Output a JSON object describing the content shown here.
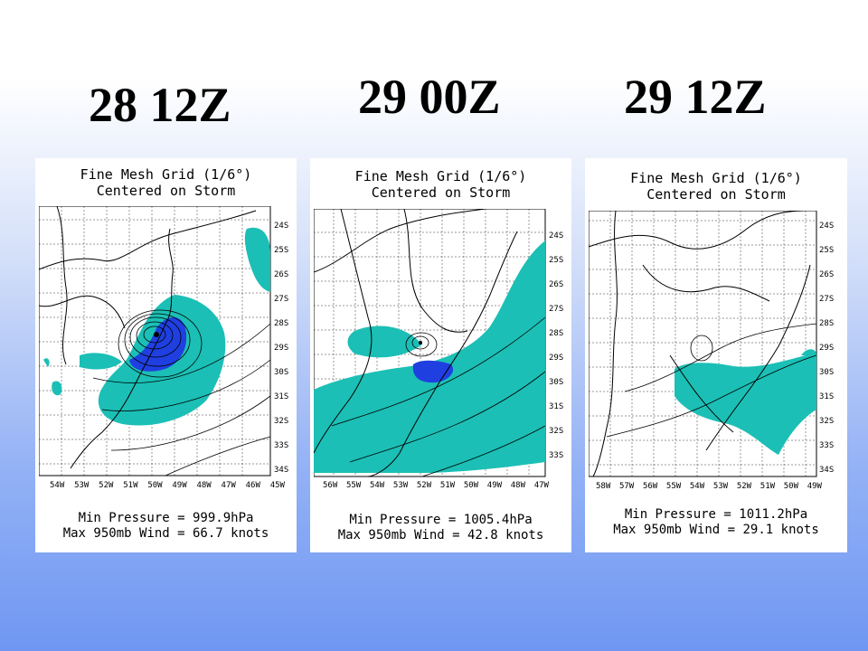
{
  "panels": [
    {
      "time": "28 12Z",
      "title_line1": "Fine Mesh Grid (1/6°)",
      "title_line2": "Centered on Storm",
      "lat_labels": [
        "24S",
        "25S",
        "26S",
        "27S",
        "28S",
        "29S",
        "30S",
        "31S",
        "32S",
        "33S",
        "34S"
      ],
      "lon_labels": [
        "54W",
        "53W",
        "52W",
        "51W",
        "50W",
        "49W",
        "48W",
        "47W",
        "46W",
        "45W"
      ],
      "min_pressure": "Min Pressure = 999.9hPa",
      "max_wind": "Max 950mb Wind = 66.7 knots",
      "colors": {
        "teal": "#1bbfb5",
        "blue": "#1f3fe0"
      }
    },
    {
      "time": "29 00Z",
      "title_line1": "Fine Mesh Grid (1/6°)",
      "title_line2": "Centered on Storm",
      "lat_labels": [
        "24S",
        "25S",
        "26S",
        "27S",
        "28S",
        "29S",
        "30S",
        "31S",
        "32S",
        "33S"
      ],
      "lon_labels": [
        "56W",
        "55W",
        "54W",
        "53W",
        "52W",
        "51W",
        "50W",
        "49W",
        "48W",
        "47W"
      ],
      "min_pressure": "Min Pressure = 1005.4hPa",
      "max_wind": "Max 950mb Wind = 42.8 knots",
      "colors": {
        "teal": "#1bbfb5",
        "blue": "#1f3fe0"
      }
    },
    {
      "time": "29 12Z",
      "title_line1": "Fine Mesh Grid (1/6°)",
      "title_line2": "Centered on Storm",
      "lat_labels": [
        "24S",
        "25S",
        "26S",
        "27S",
        "28S",
        "29S",
        "30S",
        "31S",
        "32S",
        "33S",
        "34S"
      ],
      "lon_labels": [
        "58W",
        "57W",
        "56W",
        "55W",
        "54W",
        "53W",
        "52W",
        "51W",
        "50W",
        "49W"
      ],
      "min_pressure": "Min Pressure = 1011.2hPa",
      "max_wind": "Max 950mb Wind = 29.1 knots",
      "colors": {
        "teal": "#1bbfb5",
        "blue": "#1f3fe0"
      }
    }
  ]
}
